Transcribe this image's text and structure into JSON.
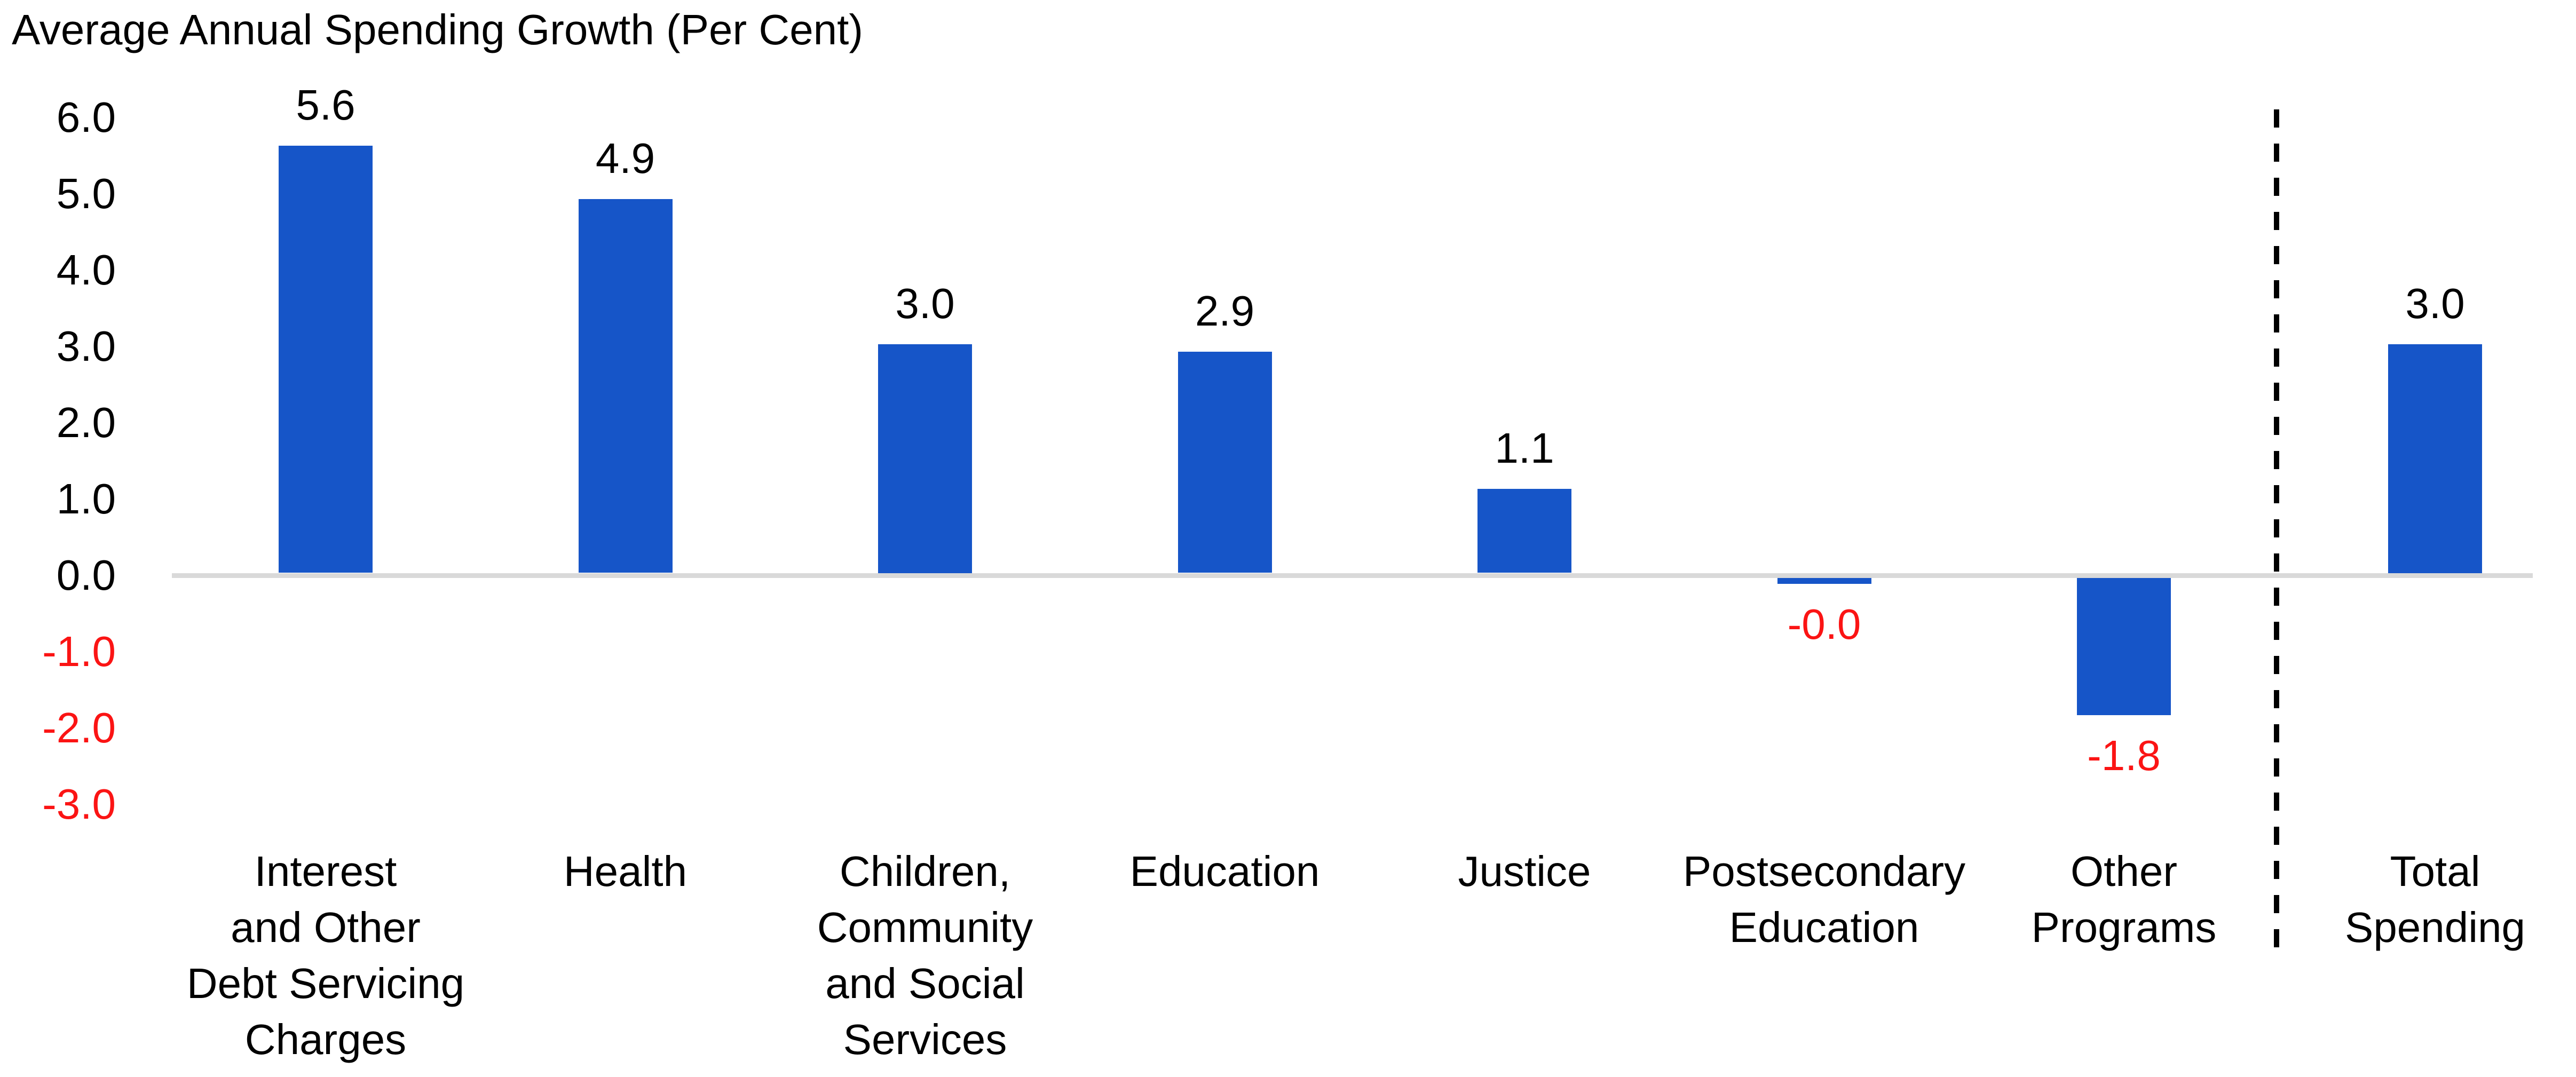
{
  "chart_data": {
    "type": "bar",
    "title": "Average Annual Spending Growth (Per Cent)",
    "xlabel": "",
    "ylabel": "Average Annual Spending Growth (Per Cent)",
    "ylim": [
      -3.0,
      6.0
    ],
    "ytick_interval": 1.0,
    "ytick_labels": [
      "6.0",
      "5.0",
      "4.0",
      "3.0",
      "2.0",
      "1.0",
      "0.0",
      "-1.0",
      "-2.0",
      "-3.0"
    ],
    "grid": "zero-line-only",
    "legend": "none",
    "bar_color": "#1655C8",
    "zero_line_color": "#D9D9D9",
    "negative_label_color": "#FB1414",
    "positive_label_color": "#000000",
    "separator": {
      "style": "dashed-vertical-line",
      "color": "#000000",
      "position": "before Total Spending"
    },
    "bars": [
      {
        "category": "Interest and Other Debt Servicing Charges",
        "label_lines": [
          "Interest",
          "and Other",
          "Debt Servicing",
          "Charges"
        ],
        "value": 5.6,
        "value_label": "5.6"
      },
      {
        "category": "Health",
        "label_lines": [
          "Health"
        ],
        "value": 4.9,
        "value_label": "4.9"
      },
      {
        "category": "Children, Community and Social Services",
        "label_lines": [
          "Children,",
          "Community",
          "and Social",
          "Services"
        ],
        "value": 3.0,
        "value_label": "3.0"
      },
      {
        "category": "Education",
        "label_lines": [
          "Education"
        ],
        "value": 2.9,
        "value_label": "2.9"
      },
      {
        "category": "Justice",
        "label_lines": [
          "Justice"
        ],
        "value": 1.1,
        "value_label": "1.1"
      },
      {
        "category": "Postsecondary Education",
        "label_lines": [
          "Postsecondary",
          "Education"
        ],
        "value": -0.0,
        "value_label": "-0.0"
      },
      {
        "category": "Other Programs",
        "label_lines": [
          "Other",
          "Programs"
        ],
        "value": -1.8,
        "value_label": "-1.8"
      },
      {
        "category": "Total Spending",
        "label_lines": [
          "Total",
          "Spending"
        ],
        "value": 3.0,
        "value_label": "3.0",
        "after_separator": true
      }
    ]
  }
}
